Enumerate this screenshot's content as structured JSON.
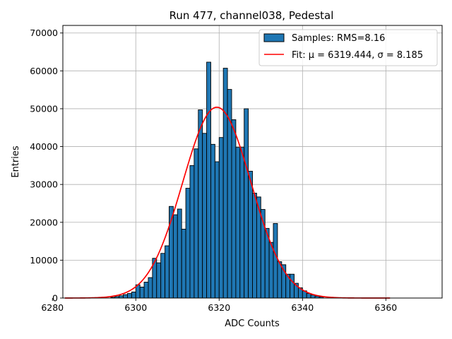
{
  "chart_data": {
    "type": "bar",
    "title": "Run 477, channel038, Pedestal",
    "xlabel": "ADC Counts",
    "ylabel": "Entries",
    "xlim": [
      6282.5,
      6373.5
    ],
    "ylim": [
      0,
      72000
    ],
    "xticks": [
      6280,
      6300,
      6320,
      6340,
      6360
    ],
    "yticks": [
      0,
      10000,
      20000,
      30000,
      40000,
      50000,
      60000,
      70000
    ],
    "grid": true,
    "legend_position": "top-right",
    "histogram": {
      "name": "Samples: RMS=8.16",
      "color": "#1f77b4",
      "bin_width": 1,
      "bins": [
        [
          6294,
          200
        ],
        [
          6295,
          400
        ],
        [
          6296,
          600
        ],
        [
          6297,
          900
        ],
        [
          6298,
          1200
        ],
        [
          6299,
          1600
        ],
        [
          6300,
          3500
        ],
        [
          6301,
          2900
        ],
        [
          6302,
          4200
        ],
        [
          6303,
          5400
        ],
        [
          6304,
          10500
        ],
        [
          6305,
          9300
        ],
        [
          6306,
          11800
        ],
        [
          6307,
          13800
        ],
        [
          6308,
          24200
        ],
        [
          6309,
          22000
        ],
        [
          6310,
          23500
        ],
        [
          6311,
          18200
        ],
        [
          6312,
          29000
        ],
        [
          6313,
          35000
        ],
        [
          6314,
          39400
        ],
        [
          6315,
          49700
        ],
        [
          6316,
          43500
        ],
        [
          6317,
          62300
        ],
        [
          6318,
          40600
        ],
        [
          6319,
          36000
        ],
        [
          6320,
          42400
        ],
        [
          6321,
          60700
        ],
        [
          6322,
          55100
        ],
        [
          6323,
          47100
        ],
        [
          6324,
          39800
        ],
        [
          6325,
          39800
        ],
        [
          6326,
          50000
        ],
        [
          6327,
          33500
        ],
        [
          6328,
          27700
        ],
        [
          6329,
          26700
        ],
        [
          6330,
          23400
        ],
        [
          6331,
          18400
        ],
        [
          6332,
          14700
        ],
        [
          6333,
          19700
        ],
        [
          6334,
          9600
        ],
        [
          6335,
          8800
        ],
        [
          6336,
          6300
        ],
        [
          6337,
          6300
        ],
        [
          6338,
          3900
        ],
        [
          6339,
          2700
        ],
        [
          6340,
          1900
        ],
        [
          6341,
          1200
        ],
        [
          6342,
          800
        ],
        [
          6343,
          500
        ],
        [
          6344,
          300
        ]
      ]
    },
    "fit": {
      "name": "Fit: μ = 6319.444, σ = 8.185",
      "color": "#ff0000",
      "mu": 6319.444,
      "sigma": 8.185,
      "amplitude": 50400,
      "x_range": [
        6283,
        6361
      ]
    }
  }
}
